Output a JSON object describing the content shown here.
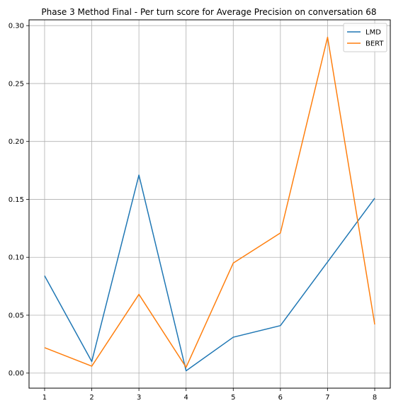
{
  "chart_data": {
    "type": "line",
    "title": "Phase 3 Method Final - Per turn score for Average Precision on conversation 68",
    "xlabel": "",
    "ylabel": "",
    "x": [
      1,
      2,
      3,
      4,
      5,
      6,
      7,
      8
    ],
    "xlim": [
      0.67,
      8.33
    ],
    "ylim": [
      -0.013,
      0.305
    ],
    "x_ticks": [
      1,
      2,
      3,
      4,
      5,
      6,
      7,
      8
    ],
    "y_ticks": [
      0.0,
      0.05,
      0.1,
      0.15,
      0.2,
      0.25,
      0.3
    ],
    "y_tick_labels": [
      "0.00",
      "0.05",
      "0.10",
      "0.15",
      "0.20",
      "0.25",
      "0.30"
    ],
    "grid": true,
    "legend_position": "top-right",
    "series": [
      {
        "name": "LMD",
        "color": "#1f77b4",
        "values": [
          0.084,
          0.01,
          0.171,
          0.002,
          0.031,
          0.041,
          0.096,
          0.151
        ]
      },
      {
        "name": "BERT",
        "color": "#ff7f0e",
        "values": [
          0.022,
          0.006,
          0.068,
          0.005,
          0.095,
          0.121,
          0.29,
          0.042
        ]
      }
    ]
  }
}
